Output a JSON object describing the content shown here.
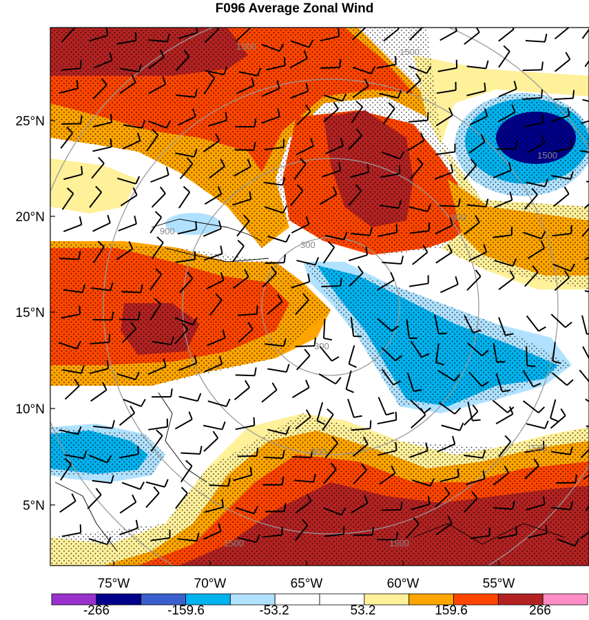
{
  "title": "F096 Average Zonal Wind",
  "lat_labels": [
    "25°N",
    "20°N",
    "15°N",
    "10°N",
    "5°N"
  ],
  "lon_labels": [
    "75°W",
    "70°W",
    "65°W",
    "60°W",
    "55°W"
  ],
  "range_ring_labels": [
    "1500",
    "1500",
    "1500",
    "900",
    "900",
    "300",
    "300",
    "900",
    "1500",
    "1500",
    "1500"
  ],
  "colorbar": {
    "labels": [
      "-266",
      "-159.6",
      "-53.2",
      "53.2",
      "159.6",
      "266"
    ],
    "colors": [
      "#9932cc",
      "#00008b",
      "#3a5fcd",
      "#00b2ee",
      "#b0e2ff",
      "#ffffff",
      "#ffffff",
      "#fff09a",
      "#ffa500",
      "#ff4500",
      "#b22222",
      "#ff8ec6"
    ]
  },
  "palette": {
    "deep_red": "#b22222",
    "red": "#ff4500",
    "orange": "#ffa500",
    "yellow": "#fff09a",
    "white": "#ffffff",
    "light_blue": "#b0e2ff",
    "blue": "#00b2ee",
    "mid_blue": "#3a5fcd",
    "navy": "#00008b"
  }
}
